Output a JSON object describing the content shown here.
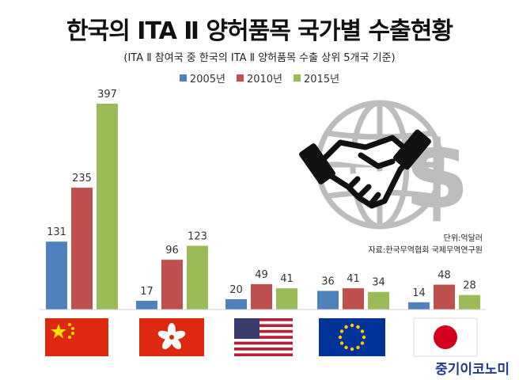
{
  "chart_data": {
    "type": "bar",
    "title": "한국의 ITA Ⅱ 양허품목 국가별 수출현황",
    "subtitle": "(ITA Ⅱ 참여국 중 한국의 ITA Ⅱ 양허품목 수출 상위 5개국 기준)",
    "categories": [
      "China",
      "Hong Kong",
      "USA",
      "EU",
      "Japan"
    ],
    "series": [
      {
        "name": "2005년",
        "color": "#4f81bd",
        "values": [
          131,
          17,
          20,
          36,
          14
        ]
      },
      {
        "name": "2010년",
        "color": "#c0504d",
        "values": [
          235,
          96,
          49,
          41,
          48
        ]
      },
      {
        "name": "2015년",
        "color": "#9bbb59",
        "values": [
          397,
          123,
          41,
          34,
          28
        ]
      }
    ],
    "ylim": [
      0,
      397
    ],
    "grid": false,
    "legend": "top-center",
    "unit_note": "단위:억달러",
    "source_note": "자료:한국무역협회  국제무역연구원"
  },
  "brand": "중기이코노미",
  "icons": [
    "handshake-icon",
    "globe-icon",
    "dollar-icon"
  ]
}
